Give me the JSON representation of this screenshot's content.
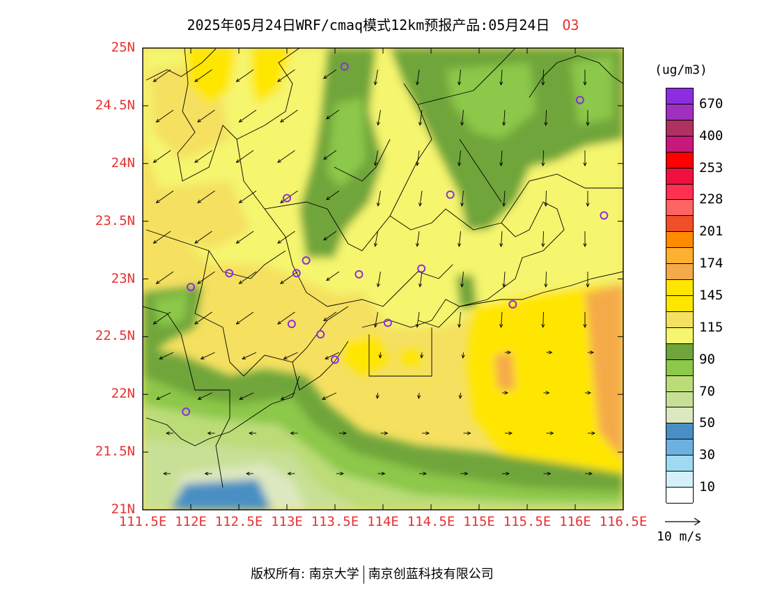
{
  "title": {
    "text": "2025年05月24日WRF/cmaq模式12km预报产品:05月24日",
    "species": "O3"
  },
  "axes": {
    "lat_labels": [
      "25N",
      "24.5N",
      "24N",
      "23.5N",
      "23N",
      "22.5N",
      "22N",
      "21.5N",
      "21N"
    ],
    "lat_values": [
      25,
      24.5,
      24,
      23.5,
      23,
      22.5,
      22,
      21.5,
      21
    ],
    "lon_labels": [
      "111.5E",
      "112E",
      "112.5E",
      "113E",
      "113.5E",
      "114E",
      "114.5E",
      "115E",
      "115.5E",
      "116E",
      "116.5E"
    ],
    "lon_values": [
      111.5,
      112,
      112.5,
      113,
      113.5,
      114,
      114.5,
      115,
      115.5,
      116,
      116.5
    ],
    "lat_range": [
      21,
      25
    ],
    "lon_range": [
      111.5,
      116.5
    ]
  },
  "colorbar": {
    "unit": "(ug/m3)",
    "labels": [
      "670",
      "400",
      "253",
      "228",
      "201",
      "174",
      "145",
      "115",
      "90",
      "70",
      "50",
      "30",
      "10"
    ],
    "colors_top_to_bottom": [
      "#8c2ee0",
      "#a030c0",
      "#b03060",
      "#c8187c",
      "#ff0000",
      "#f01040",
      "#ff3050",
      "#ff6464",
      "#f05028",
      "#ff8c00",
      "#ffb030",
      "#f5aa4a",
      "#ffe600",
      "#ffe600",
      "#f5e060",
      "#f5f56e",
      "#6fa53a",
      "#8cc84a",
      "#bcdc78",
      "#c8e096",
      "#dde8c0",
      "#4a8fc4",
      "#6eb0e0",
      "#a0daf2",
      "#d4f0fa",
      "#ffffff"
    ]
  },
  "reference_vector": {
    "label": "10 m/s"
  },
  "stations": [
    {
      "lon": 113.6,
      "lat": 24.84
    },
    {
      "lon": 116.05,
      "lat": 24.55
    },
    {
      "lon": 113.0,
      "lat": 23.7
    },
    {
      "lon": 114.7,
      "lat": 23.73
    },
    {
      "lon": 116.3,
      "lat": 23.55
    },
    {
      "lon": 112.4,
      "lat": 23.05
    },
    {
      "lon": 113.1,
      "lat": 23.05
    },
    {
      "lon": 113.2,
      "lat": 23.16
    },
    {
      "lon": 113.75,
      "lat": 23.04
    },
    {
      "lon": 114.4,
      "lat": 23.09
    },
    {
      "lon": 112.0,
      "lat": 22.93
    },
    {
      "lon": 113.05,
      "lat": 22.61
    },
    {
      "lon": 113.35,
      "lat": 22.52
    },
    {
      "lon": 114.05,
      "lat": 22.62
    },
    {
      "lon": 115.35,
      "lat": 22.78
    },
    {
      "lon": 113.5,
      "lat": 22.3
    },
    {
      "lon": 111.95,
      "lat": 21.85
    }
  ],
  "footer": {
    "copyright": "版权所有: 南京大学",
    "company": "南京创蓝科技有限公司"
  }
}
